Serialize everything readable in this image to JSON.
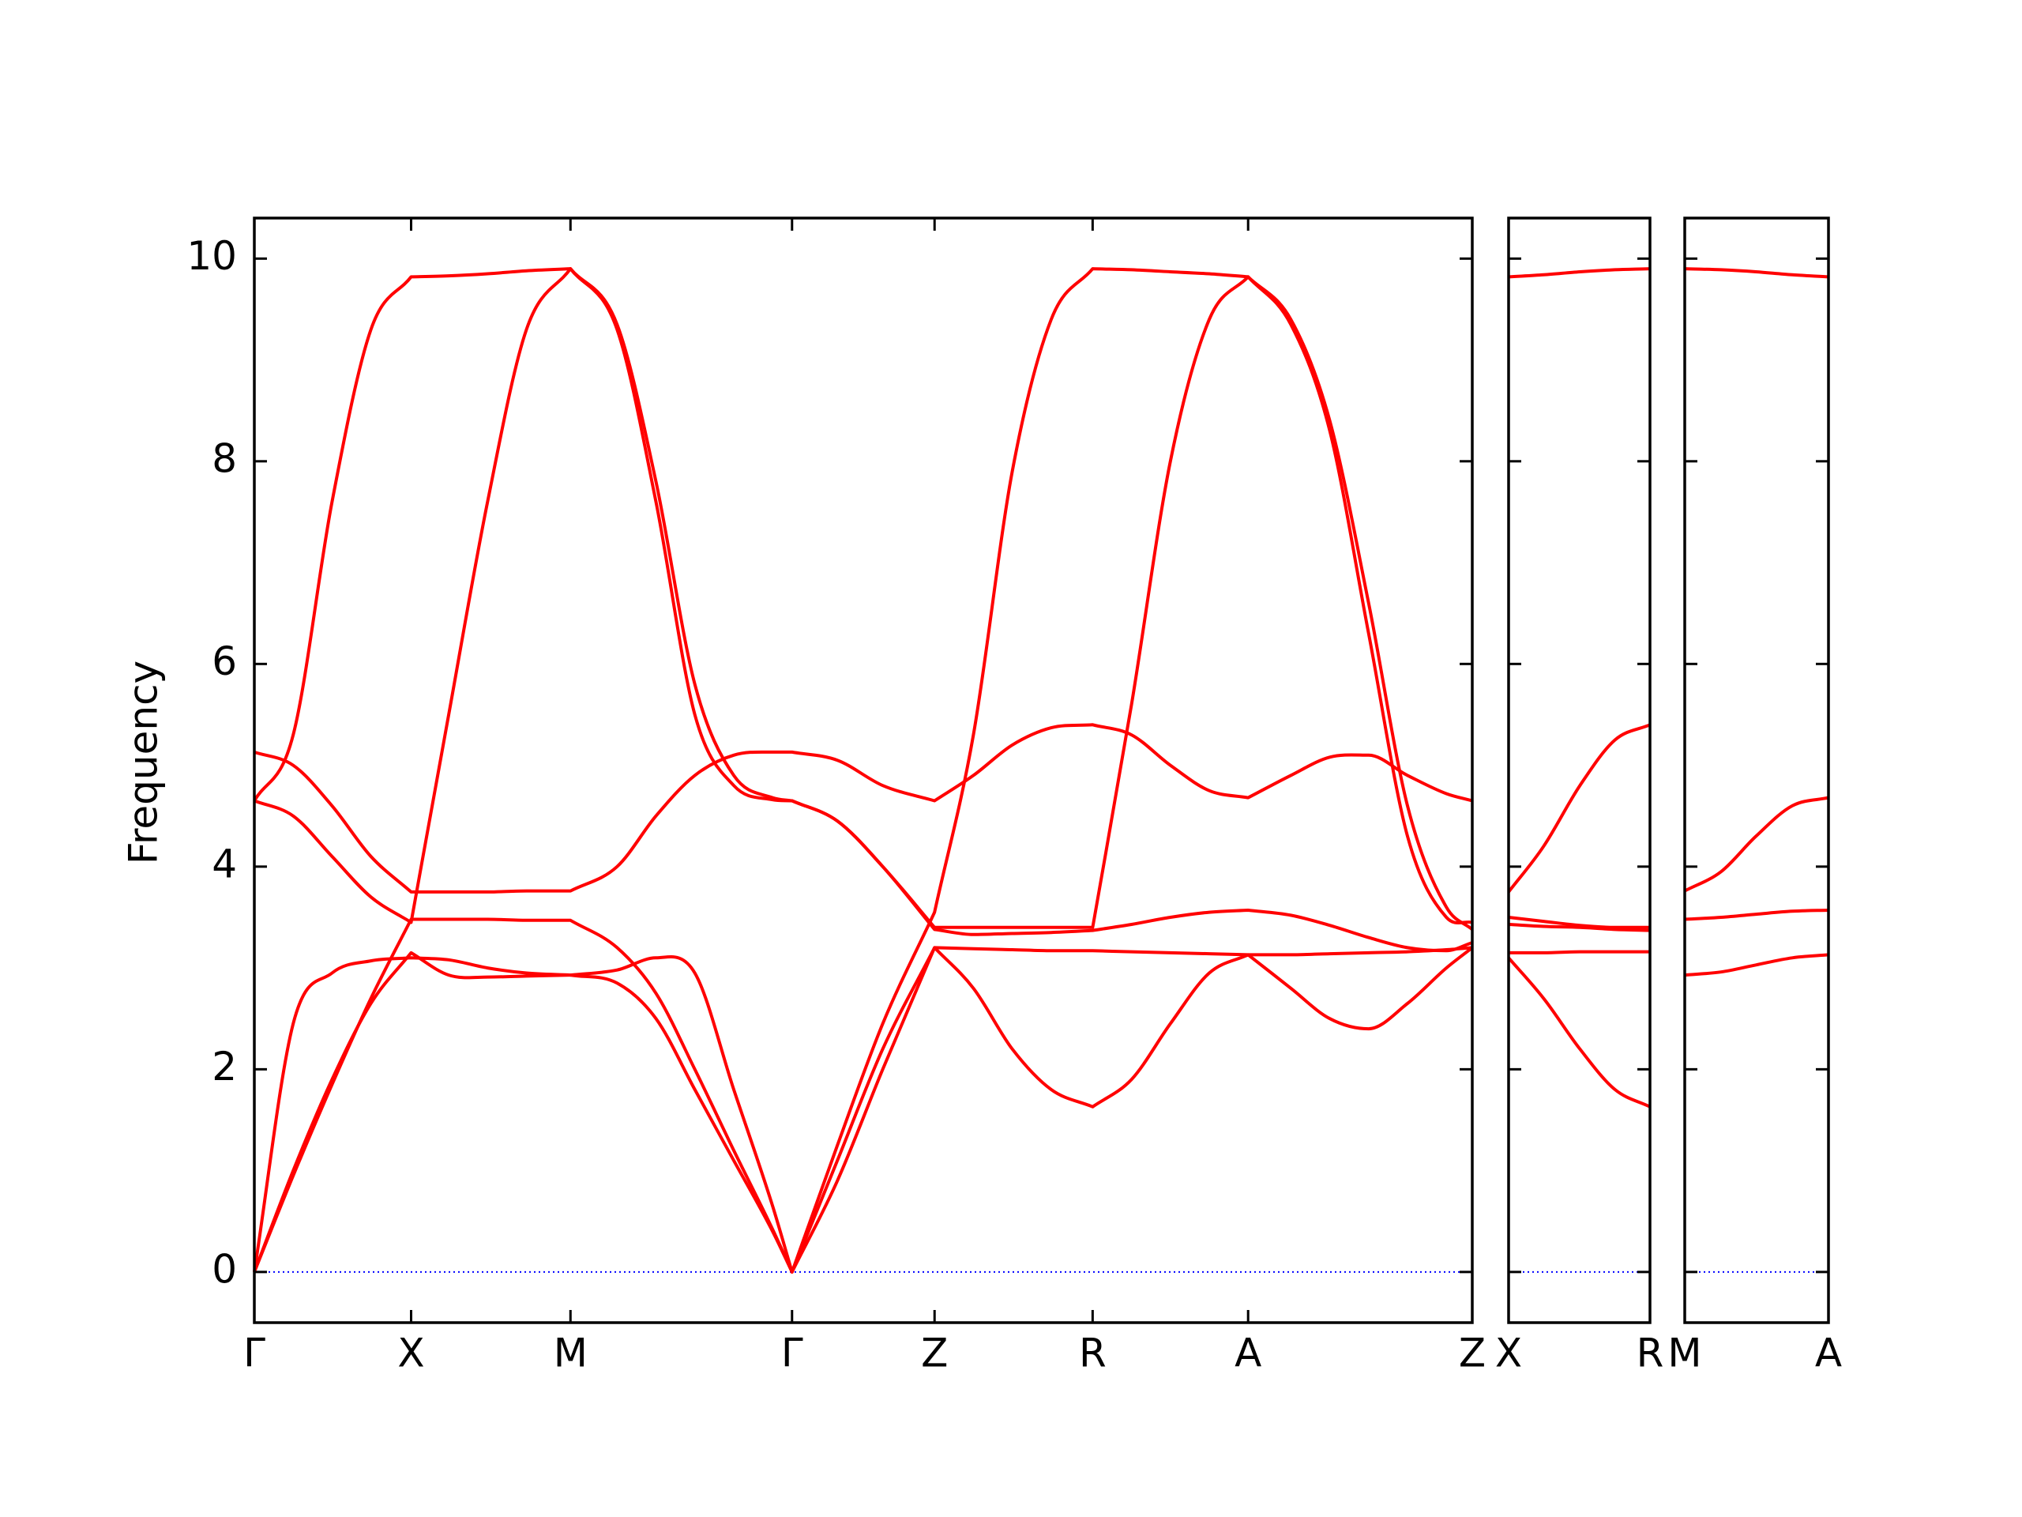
{
  "chart_data": [
    {
      "type": "line",
      "ylabel": "Frequency",
      "ytick_labels": true,
      "xlim": [
        0,
        9.4
      ],
      "ylim": [
        -0.5,
        10.4
      ],
      "yticks": [
        0,
        2,
        4,
        6,
        8,
        10
      ],
      "xticks": [
        {
          "value": 0,
          "label": "Γ"
        },
        {
          "value": 1.21,
          "label": "X"
        },
        {
          "value": 2.44,
          "label": "M"
        },
        {
          "value": 4.15,
          "label": "Γ"
        },
        {
          "value": 5.25,
          "label": "Z"
        },
        {
          "value": 6.47,
          "label": "R"
        },
        {
          "value": 7.67,
          "label": "A"
        },
        {
          "value": 9.4,
          "label": "Z"
        }
      ],
      "hlines": [
        {
          "value": 0,
          "color": "#0000ff"
        }
      ],
      "x": [
        0,
        0.3,
        0.6,
        0.9,
        1.21,
        1.5,
        1.8,
        2.1,
        2.44,
        2.8,
        3.1,
        3.4,
        3.7,
        4.0,
        4.15,
        4.5,
        4.85,
        5.25,
        5.55,
        5.85,
        6.15,
        6.47,
        6.77,
        7.07,
        7.37,
        7.67,
        8.0,
        8.3,
        8.6,
        8.9,
        9.2,
        9.4
      ],
      "series": [
        {
          "color": "#ff0000",
          "values": [
            4.65,
            5.3,
            7.6,
            9.3,
            9.82,
            9.83,
            9.85,
            9.88,
            9.9,
            9.3,
            7.6,
            5.5,
            4.8,
            4.66,
            4.65,
            4.45,
            4.0,
            3.4,
            3.4,
            3.4,
            3.4,
            3.4,
            5.6,
            8.0,
            9.4,
            9.82,
            9.4,
            8.4,
            6.6,
            4.6,
            3.6,
            3.38
          ]
        },
        {
          "color": "#ff0000",
          "values": [
            5.13,
            5.0,
            4.6,
            4.1,
            3.75,
            3.75,
            3.75,
            3.76,
            3.76,
            4.0,
            4.5,
            4.9,
            5.1,
            5.13,
            5.13,
            5.05,
            4.8,
            4.65,
            4.9,
            5.2,
            5.37,
            5.4,
            5.3,
            5.0,
            4.75,
            4.68,
            4.9,
            5.08,
            5.1,
            4.9,
            4.72,
            4.65
          ]
        },
        {
          "color": "#ff0000",
          "values": [
            4.65,
            4.5,
            4.1,
            3.7,
            3.45,
            5.5,
            7.6,
            9.3,
            9.9,
            9.35,
            7.8,
            5.8,
            4.9,
            4.68,
            4.65,
            4.45,
            4.0,
            3.38,
            3.33,
            3.34,
            3.35,
            3.37,
            3.43,
            3.5,
            3.55,
            3.57,
            3.52,
            3.42,
            3.3,
            3.2,
            3.17,
            3.25
          ]
        },
        {
          "color": "#ff0000",
          "values": [
            0,
            0.95,
            1.85,
            2.7,
            3.48,
            3.48,
            3.48,
            3.47,
            3.47,
            3.2,
            2.75,
            2.0,
            1.2,
            0.42,
            0,
            1.25,
            2.45,
            3.55,
            5.3,
            7.9,
            9.4,
            9.9,
            9.89,
            9.87,
            9.85,
            9.82,
            9.35,
            8.3,
            6.3,
            4.3,
            3.5,
            3.45
          ]
        },
        {
          "color": "#ff0000",
          "values": [
            0,
            1.0,
            1.9,
            2.65,
            3.15,
            2.93,
            2.91,
            2.92,
            2.93,
            2.98,
            3.1,
            2.95,
            1.8,
            0.65,
            0,
            1.1,
            2.2,
            3.2,
            3.19,
            3.18,
            3.17,
            3.17,
            3.16,
            3.15,
            3.14,
            3.13,
            3.13,
            3.14,
            3.15,
            3.16,
            3.18,
            3.2
          ]
        },
        {
          "color": "#ff0000",
          "values": [
            0,
            2.45,
            2.95,
            3.07,
            3.1,
            3.08,
            3.0,
            2.95,
            2.93,
            2.85,
            2.5,
            1.8,
            1.1,
            0.4,
            0,
            0.9,
            2.0,
            3.2,
            2.8,
            2.2,
            1.8,
            1.63,
            1.9,
            2.45,
            2.95,
            3.13,
            2.8,
            2.5,
            2.4,
            2.65,
            3.0,
            3.2
          ]
        }
      ]
    },
    {
      "type": "line",
      "ytick_labels": false,
      "xlim": [
        0,
        1.09
      ],
      "ylim": [
        -0.5,
        10.4
      ],
      "yticks": [
        0,
        2,
        4,
        6,
        8,
        10
      ],
      "xticks": [
        {
          "value": 0,
          "label": "X"
        },
        {
          "value": 1.09,
          "label": "R"
        }
      ],
      "hlines": [
        {
          "value": 0,
          "color": "#0000ff"
        }
      ],
      "x": [
        0,
        0.27,
        0.55,
        0.82,
        1.09
      ],
      "series": [
        {
          "color": "#ff0000",
          "values": [
            9.82,
            9.84,
            9.87,
            9.89,
            9.9
          ]
        },
        {
          "color": "#ff0000",
          "values": [
            3.75,
            4.2,
            4.8,
            5.25,
            5.4
          ]
        },
        {
          "color": "#ff0000",
          "values": [
            3.5,
            3.46,
            3.42,
            3.4,
            3.4
          ]
        },
        {
          "color": "#ff0000",
          "values": [
            3.43,
            3.41,
            3.4,
            3.38,
            3.37
          ]
        },
        {
          "color": "#ff0000",
          "values": [
            3.15,
            3.15,
            3.16,
            3.16,
            3.16
          ]
        },
        {
          "color": "#ff0000",
          "values": [
            3.1,
            2.7,
            2.2,
            1.8,
            1.63
          ]
        }
      ]
    },
    {
      "type": "line",
      "ytick_labels": false,
      "xlim": [
        0,
        1.11
      ],
      "ylim": [
        -0.5,
        10.4
      ],
      "yticks": [
        0,
        2,
        4,
        6,
        8,
        10
      ],
      "xticks": [
        {
          "value": 0,
          "label": "M"
        },
        {
          "value": 1.11,
          "label": "A"
        }
      ],
      "hlines": [
        {
          "value": 0,
          "color": "#0000ff"
        }
      ],
      "x": [
        0,
        0.28,
        0.55,
        0.83,
        1.11
      ],
      "series": [
        {
          "color": "#ff0000",
          "values": [
            9.9,
            9.89,
            9.87,
            9.84,
            9.82
          ]
        },
        {
          "color": "#ff0000",
          "values": [
            3.76,
            3.95,
            4.3,
            4.6,
            4.68
          ]
        },
        {
          "color": "#ff0000",
          "values": [
            3.48,
            3.5,
            3.53,
            3.56,
            3.57
          ]
        },
        {
          "color": "#ff0000",
          "values": [
            2.93,
            2.96,
            3.03,
            3.1,
            3.13
          ]
        }
      ]
    }
  ]
}
